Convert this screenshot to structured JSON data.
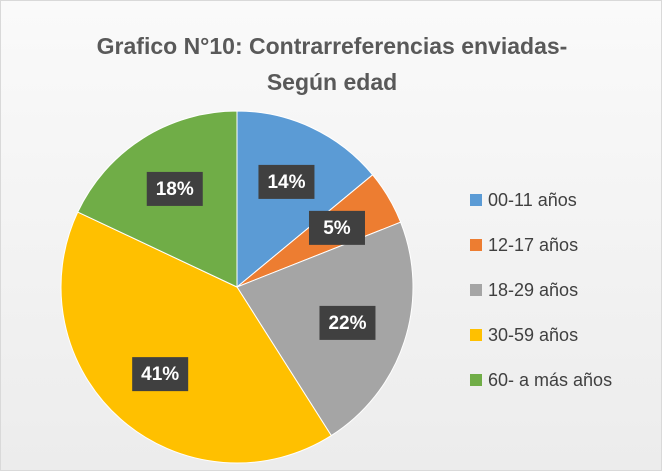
{
  "chart_data": {
    "type": "pie",
    "title": [
      "Grafico N°10: Contrarreferencias enviadas-",
      "Según edad"
    ],
    "categories": [
      "00-11 años",
      "12-17 años",
      "18-29 años",
      "30-59 años",
      "60- a más años"
    ],
    "values": [
      14,
      5,
      22,
      41,
      18
    ],
    "value_labels": [
      "14%",
      "5%",
      "22%",
      "41%",
      "18%"
    ],
    "colors": [
      "#5b9bd5",
      "#ed7d31",
      "#a5a5a5",
      "#ffc000",
      "#70ad47"
    ],
    "legend": "right"
  }
}
